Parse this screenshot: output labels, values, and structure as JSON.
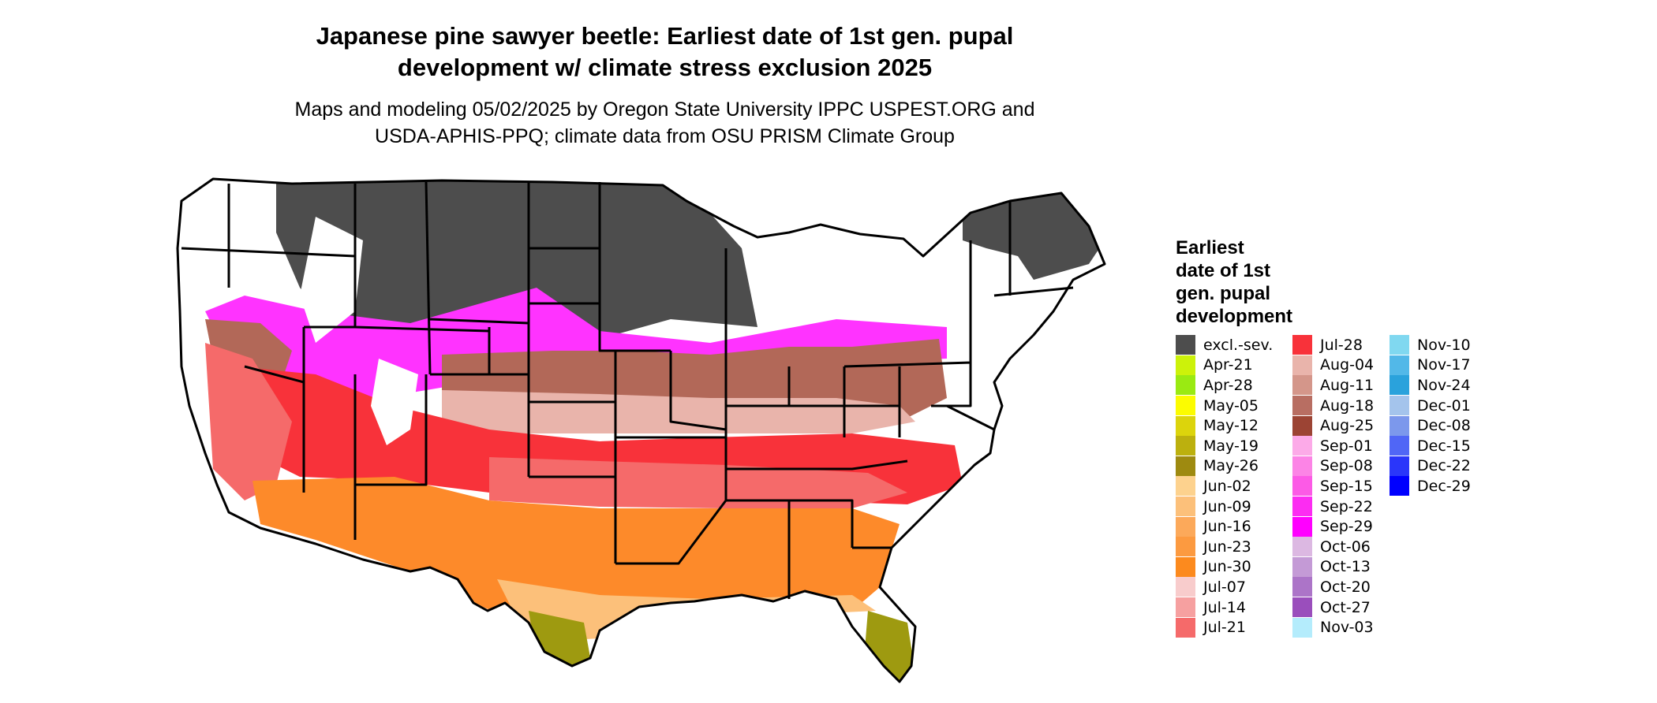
{
  "title": {
    "line1": "Japanese pine sawyer beetle: Earliest date of 1st gen. pupal",
    "line2": "development w/ climate stress exclusion 2025"
  },
  "subtitle": {
    "line1": "Maps and modeling 05/02/2025 by Oregon State University IPPC USPEST.ORG and",
    "line2": "USDA-APHIS-PPQ; climate data from OSU PRISM Climate Group"
  },
  "map": {
    "region": "contiguous-united-states",
    "zone_colors": {
      "excluded": "#4d4d4d",
      "unshaded": "#ffffff",
      "spring_south_fl_tx": "#9e9a10",
      "june_south": "#fd8a2a",
      "july_southern_belt": "#f8323a",
      "august_midwest": "#b26858",
      "september_fringe": "#ff33ff"
    }
  },
  "legend": {
    "title": {
      "line1": "Earliest",
      "line2": "date of 1st",
      "line3": "gen. pupal",
      "line4": "development"
    },
    "columns": [
      [
        {
          "label": "excl.-sev.",
          "color": "#4d4d4d"
        },
        {
          "label": "Apr-21",
          "color": "#ccf20a"
        },
        {
          "label": "Apr-28",
          "color": "#9aea12"
        },
        {
          "label": "May-05",
          "color": "#fcfc00"
        },
        {
          "label": "May-12",
          "color": "#dcd40c"
        },
        {
          "label": "May-19",
          "color": "#bcb00e"
        },
        {
          "label": "May-26",
          "color": "#9e8a10"
        },
        {
          "label": "Jun-02",
          "color": "#fdd28e"
        },
        {
          "label": "Jun-09",
          "color": "#fcc07a"
        },
        {
          "label": "Jun-16",
          "color": "#fca95a"
        },
        {
          "label": "Jun-23",
          "color": "#fc9a40"
        },
        {
          "label": "Jun-30",
          "color": "#fc8a1e"
        },
        {
          "label": "Jul-07",
          "color": "#f8cccc"
        },
        {
          "label": "Jul-14",
          "color": "#f6a0a0"
        },
        {
          "label": "Jul-21",
          "color": "#f56a6a"
        }
      ],
      [
        {
          "label": "Jul-28",
          "color": "#f8323a"
        },
        {
          "label": "Aug-04",
          "color": "#e9b4ab"
        },
        {
          "label": "Aug-11",
          "color": "#d4968a"
        },
        {
          "label": "Aug-18",
          "color": "#b86e62"
        },
        {
          "label": "Aug-25",
          "color": "#9c4434"
        },
        {
          "label": "Sep-01",
          "color": "#fcaae8"
        },
        {
          "label": "Sep-08",
          "color": "#fc84e6"
        },
        {
          "label": "Sep-15",
          "color": "#fc5ae6"
        },
        {
          "label": "Sep-22",
          "color": "#fc2cf2"
        },
        {
          "label": "Sep-29",
          "color": "#ff00ff"
        },
        {
          "label": "Oct-06",
          "color": "#dcb8e2"
        },
        {
          "label": "Oct-13",
          "color": "#c49ad6"
        },
        {
          "label": "Oct-20",
          "color": "#ac74c8"
        },
        {
          "label": "Oct-27",
          "color": "#9a4ebc"
        },
        {
          "label": "Nov-03",
          "color": "#b4ecfc"
        }
      ],
      [
        {
          "label": "Nov-10",
          "color": "#80d8f0"
        },
        {
          "label": "Nov-17",
          "color": "#52b8e8"
        },
        {
          "label": "Nov-24",
          "color": "#2aa2dc"
        },
        {
          "label": "Dec-01",
          "color": "#a4c4ec"
        },
        {
          "label": "Dec-08",
          "color": "#7c98ec"
        },
        {
          "label": "Dec-15",
          "color": "#5066f6"
        },
        {
          "label": "Dec-22",
          "color": "#2a36fa"
        },
        {
          "label": "Dec-29",
          "color": "#0000ff"
        }
      ]
    ]
  }
}
